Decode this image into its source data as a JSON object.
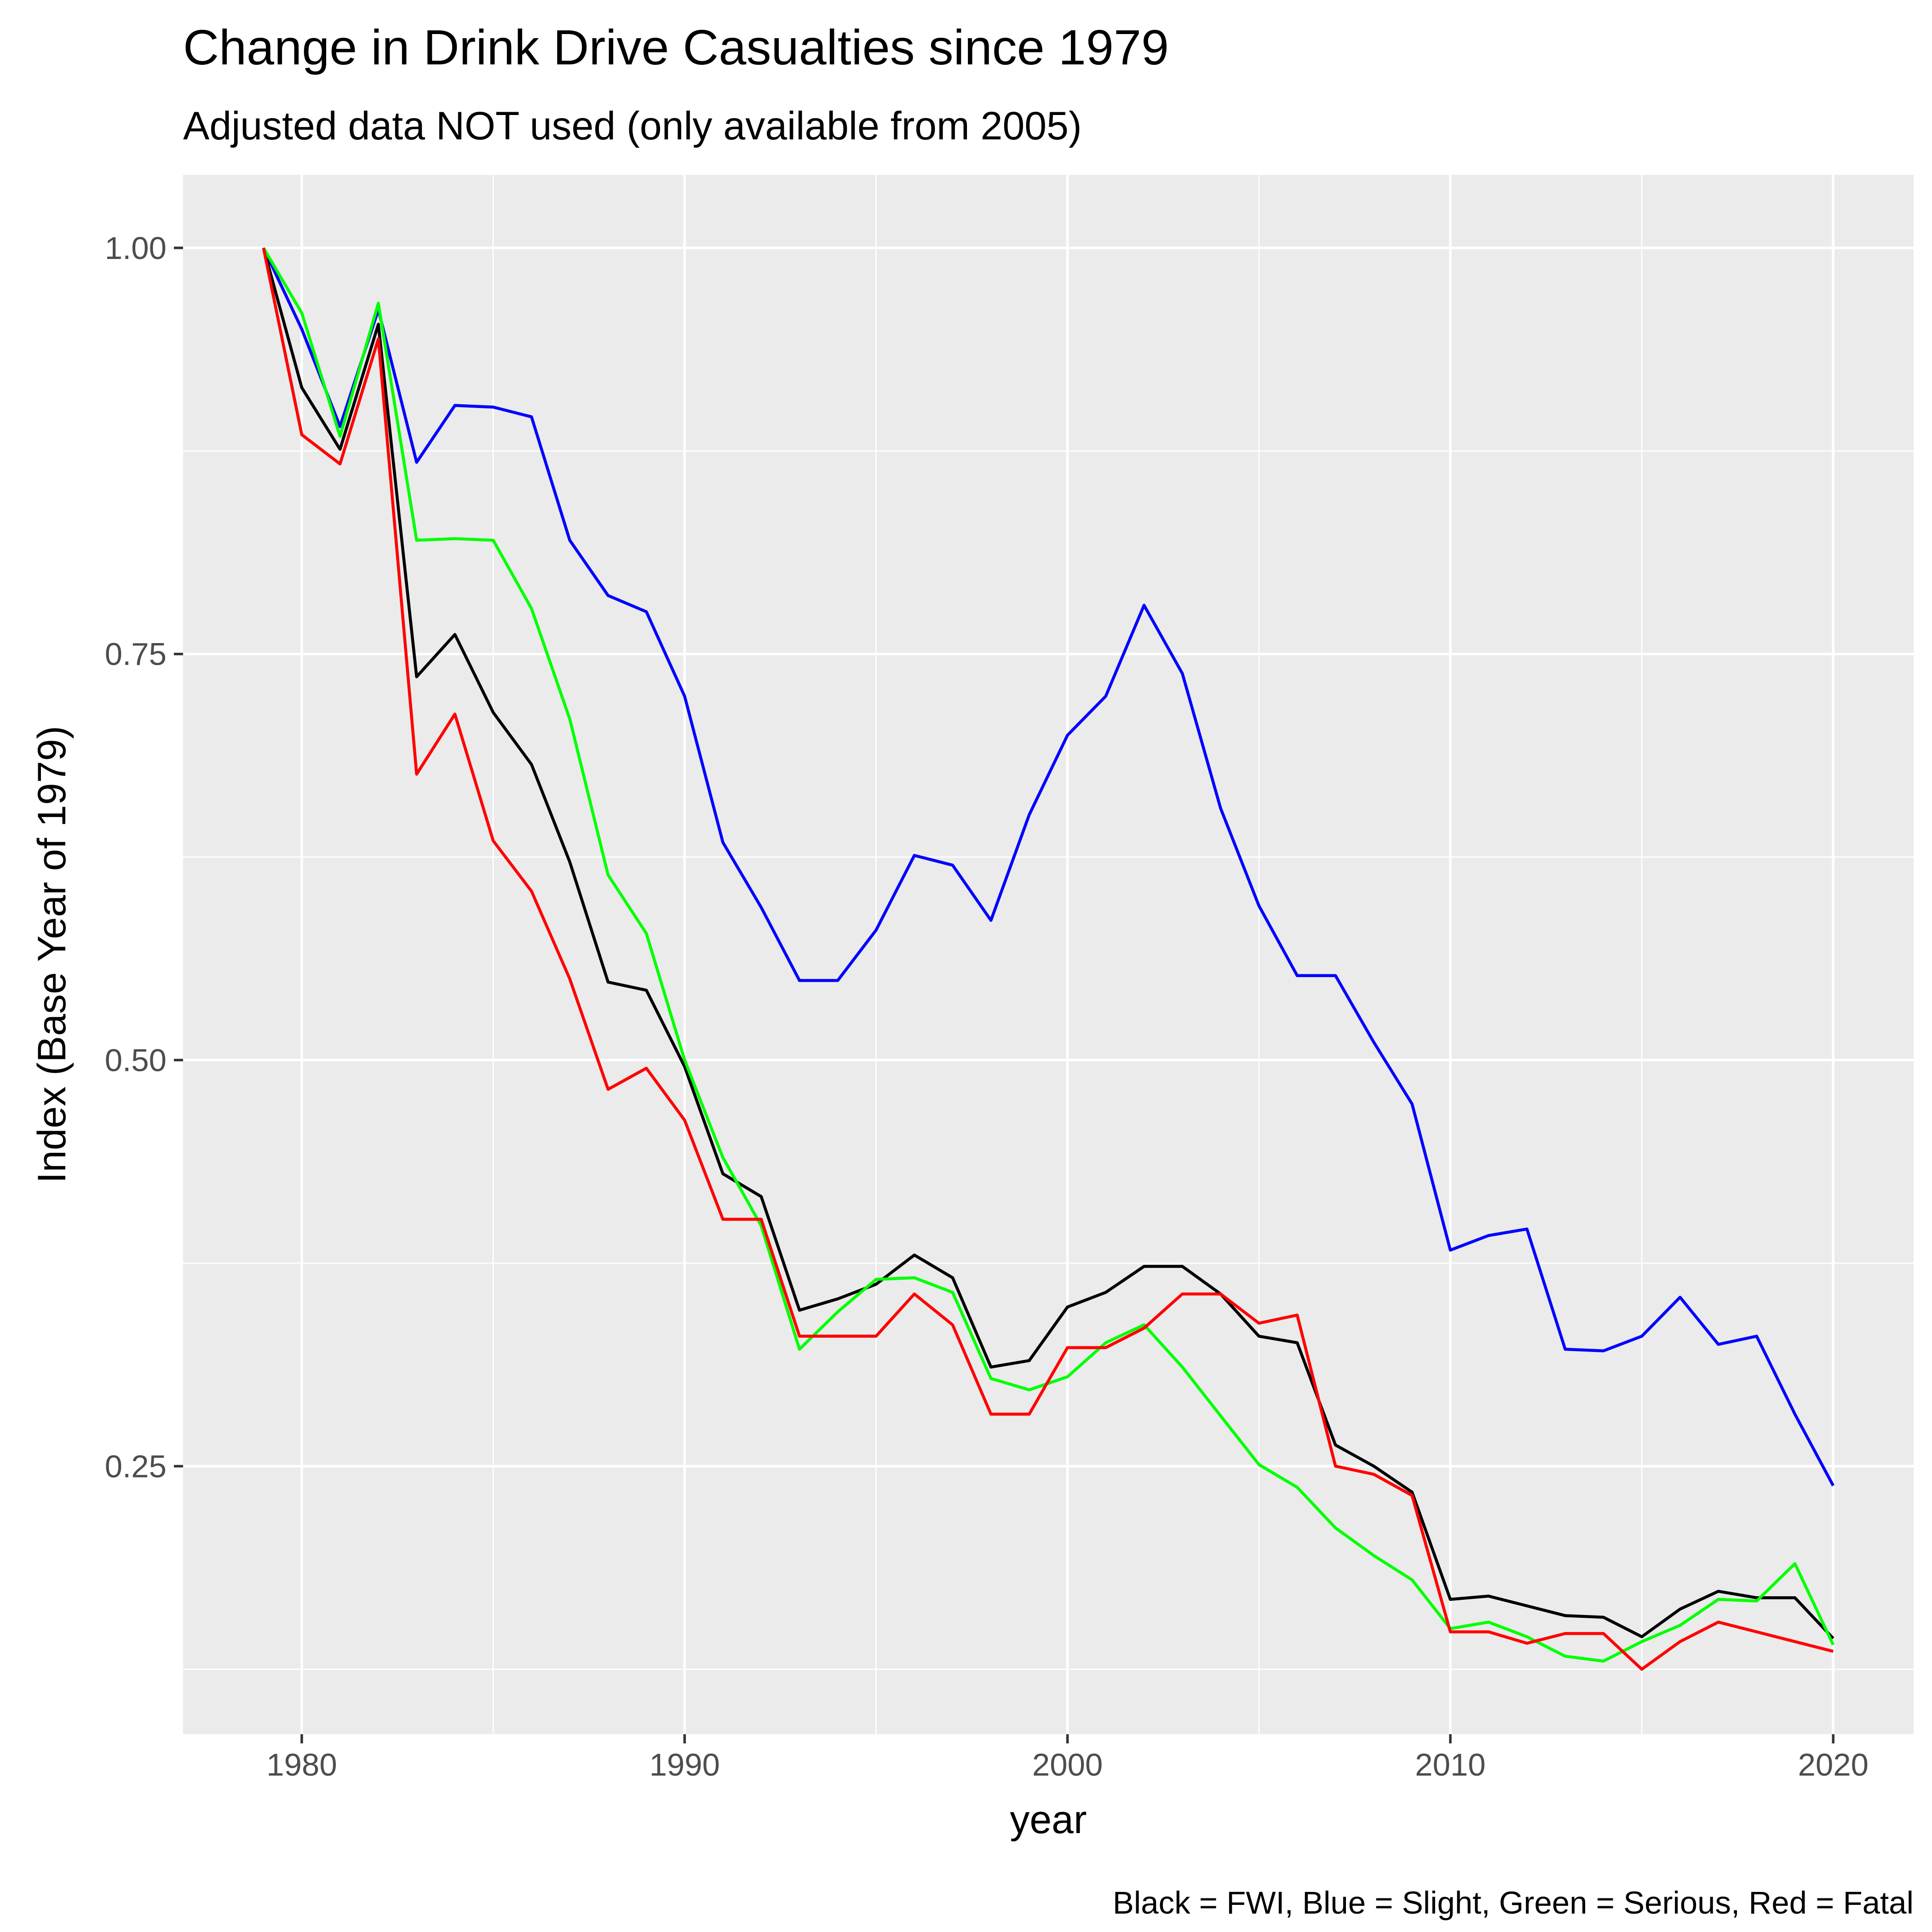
{
  "chart_data": {
    "type": "line",
    "title": "Change in Drink Drive Casualties since 1979",
    "subtitle": "Adjusted data NOT used (only available from 2005)",
    "xlabel": "year",
    "ylabel": "Index (Base Year of 1979)",
    "caption": "Black = FWI, Blue = Slight, Green = Serious, Red = Fatal",
    "xlim": [
      1976.9,
      2022.1
    ],
    "ylim": [
      0.085,
      1.045
    ],
    "x_ticks": [
      1980,
      1990,
      2000,
      2010,
      2020
    ],
    "x_tick_labels": [
      "1980",
      "1990",
      "2000",
      "2010",
      "2020"
    ],
    "x_minor_ticks": [
      1985,
      1995,
      2005,
      2015
    ],
    "y_ticks": [
      0.25,
      0.5,
      0.75,
      1.0
    ],
    "y_tick_labels": [
      "0.25",
      "0.50",
      "0.75",
      "1.00"
    ],
    "y_minor_ticks": [
      0.125,
      0.375,
      0.625,
      0.875
    ],
    "grid": true,
    "legend": "none",
    "x": [
      1979,
      1980,
      1981,
      1982,
      1983,
      1984,
      1985,
      1986,
      1987,
      1988,
      1989,
      1990,
      1991,
      1992,
      1993,
      1994,
      1995,
      1996,
      1997,
      1998,
      1999,
      2000,
      2001,
      2002,
      2003,
      2004,
      2005,
      2006,
      2007,
      2008,
      2009,
      2010,
      2011,
      2012,
      2013,
      2014,
      2015,
      2016,
      2017,
      2018,
      2019,
      2020
    ],
    "series": [
      {
        "color": "#0000ff",
        "values": [
          1.0,
          0.95,
          0.89,
          0.962,
          0.868,
          0.903,
          0.902,
          0.896,
          0.82,
          0.786,
          0.776,
          0.724,
          0.634,
          0.594,
          0.549,
          0.549,
          0.58,
          0.626,
          0.62,
          0.586,
          0.651,
          0.7,
          0.724,
          0.78,
          0.738,
          0.655,
          0.595,
          0.552,
          0.552,
          0.511,
          0.473,
          0.383,
          0.392,
          0.396,
          0.322,
          0.321,
          0.33,
          0.354,
          0.325,
          0.33,
          0.282,
          0.238
        ]
      },
      {
        "color": "#000000",
        "values": [
          1.0,
          0.914,
          0.876,
          0.953,
          0.736,
          0.762,
          0.714,
          0.682,
          0.622,
          0.548,
          0.543,
          0.496,
          0.43,
          0.416,
          0.346,
          0.353,
          0.362,
          0.38,
          0.366,
          0.311,
          0.315,
          0.348,
          0.357,
          0.373,
          0.373,
          0.356,
          0.33,
          0.326,
          0.263,
          0.25,
          0.234,
          0.168,
          0.17,
          0.164,
          0.158,
          0.157,
          0.145,
          0.162,
          0.173,
          0.169,
          0.169,
          0.144
        ]
      },
      {
        "color": "#00ff00",
        "values": [
          1.0,
          0.96,
          0.884,
          0.966,
          0.82,
          0.821,
          0.82,
          0.778,
          0.71,
          0.614,
          0.578,
          0.5,
          0.44,
          0.398,
          0.322,
          0.345,
          0.365,
          0.366,
          0.357,
          0.304,
          0.297,
          0.305,
          0.326,
          0.337,
          0.311,
          0.281,
          0.251,
          0.237,
          0.212,
          0.195,
          0.18,
          0.15,
          0.154,
          0.145,
          0.133,
          0.13,
          0.142,
          0.152,
          0.168,
          0.167,
          0.19,
          0.14
        ]
      },
      {
        "color": "#ff0000",
        "values": [
          1.0,
          0.885,
          0.867,
          0.944,
          0.676,
          0.713,
          0.635,
          0.604,
          0.55,
          0.482,
          0.495,
          0.463,
          0.402,
          0.402,
          0.33,
          0.33,
          0.33,
          0.356,
          0.337,
          0.282,
          0.282,
          0.323,
          0.323,
          0.335,
          0.356,
          0.356,
          0.338,
          0.343,
          0.25,
          0.245,
          0.232,
          0.148,
          0.148,
          0.141,
          0.147,
          0.147,
          0.125,
          0.142,
          0.154,
          0.148,
          0.142,
          0.136
        ]
      }
    ]
  }
}
